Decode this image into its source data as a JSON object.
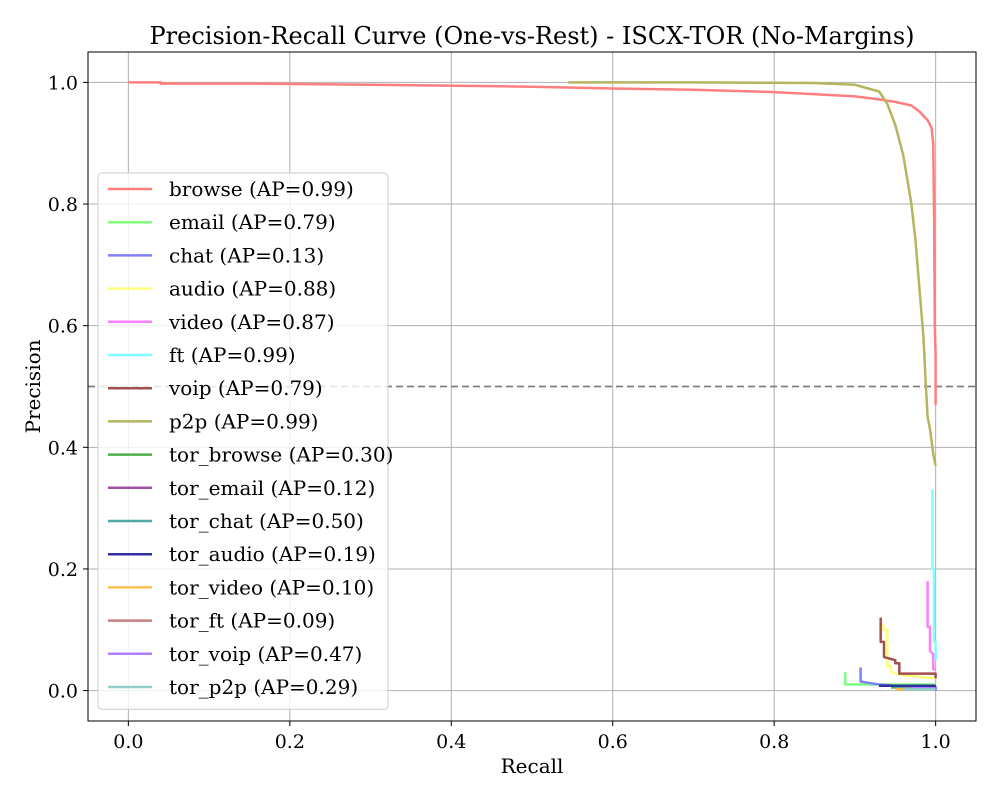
{
  "chart_data": {
    "type": "line",
    "title": "Precision-Recall Curve (One-vs-Rest) - ISCX-TOR (No-Margins)",
    "xlabel": "Recall",
    "ylabel": "Precision",
    "xlim": [
      -0.05,
      1.05
    ],
    "ylim": [
      -0.05,
      1.05
    ],
    "xticks": [
      0.0,
      0.2,
      0.4,
      0.6,
      0.8,
      1.0
    ],
    "xtick_labels": [
      "0.0",
      "0.2",
      "0.4",
      "0.6",
      "0.8",
      "1.0"
    ],
    "yticks": [
      0.0,
      0.2,
      0.4,
      0.6,
      0.8,
      1.0
    ],
    "ytick_labels": [
      "0.0",
      "0.2",
      "0.4",
      "0.6",
      "0.8",
      "1.0"
    ],
    "grid": true,
    "legend_placement": "center-left",
    "reference_line": {
      "y": 0.5,
      "style": "dashed",
      "color": "#808080"
    },
    "series": [
      {
        "name": "browse (AP=0.99)",
        "color": "#ff7f7f",
        "x": [
          0.0,
          0.04,
          0.04,
          0.15,
          0.3,
          0.5,
          0.6,
          0.7,
          0.8,
          0.86,
          0.9,
          0.93,
          0.95,
          0.97,
          0.98,
          0.99,
          0.995,
          0.997,
          0.998,
          0.999,
          1.0,
          1.0
        ],
        "y": [
          1.0,
          1.0,
          0.998,
          0.998,
          0.996,
          0.993,
          0.99,
          0.988,
          0.984,
          0.98,
          0.977,
          0.972,
          0.968,
          0.962,
          0.952,
          0.938,
          0.925,
          0.9,
          0.8,
          0.6,
          0.55,
          0.47
        ]
      },
      {
        "name": "email (AP=0.79)",
        "color": "#7fff7f",
        "x": [
          0.888,
          0.888,
          0.94,
          1.0
        ],
        "y": [
          0.03,
          0.01,
          0.01,
          0.01
        ]
      },
      {
        "name": "chat (AP=0.13)",
        "color": "#7f7fff",
        "x": [
          0.907,
          0.907,
          0.92,
          0.93,
          0.95,
          1.0,
          1.0
        ],
        "y": [
          0.038,
          0.015,
          0.012,
          0.01,
          0.008,
          0.006,
          0.0
        ]
      },
      {
        "name": "audio (AP=0.88)",
        "color": "#ffff7f",
        "x": [
          0.935,
          0.935,
          0.94,
          0.94,
          0.945,
          0.945,
          0.96,
          1.0
        ],
        "y": [
          0.11,
          0.1,
          0.1,
          0.04,
          0.04,
          0.03,
          0.025,
          0.02
        ]
      },
      {
        "name": "video (AP=0.87)",
        "color": "#ff7fff",
        "x": [
          0.99,
          0.99,
          0.993,
          0.993,
          0.997,
          0.997,
          1.0
        ],
        "y": [
          0.18,
          0.105,
          0.105,
          0.065,
          0.06,
          0.035,
          0.035
        ]
      },
      {
        "name": "ft (AP=0.99)",
        "color": "#7fffff",
        "x": [
          0.996,
          0.996,
          0.998,
          0.998,
          1.0,
          1.0
        ],
        "y": [
          0.33,
          0.2,
          0.2,
          0.08,
          0.08,
          0.05
        ]
      },
      {
        "name": "voip (AP=0.79)",
        "color": "#a05050",
        "x": [
          0.932,
          0.932,
          0.936,
          0.936,
          0.95,
          0.95,
          0.955,
          0.955,
          1.0,
          1.0
        ],
        "y": [
          0.12,
          0.08,
          0.08,
          0.055,
          0.05,
          0.045,
          0.045,
          0.028,
          0.028,
          0.02
        ]
      },
      {
        "name": "p2p (AP=0.99)",
        "color": "#b5b560",
        "x": [
          0.545,
          0.7,
          0.85,
          0.9,
          0.93,
          0.94,
          0.95,
          0.96,
          0.97,
          0.975,
          0.98,
          0.985,
          0.988,
          0.99,
          0.993,
          0.995,
          0.997,
          1.0
        ],
        "y": [
          1.0,
          1.0,
          0.999,
          0.996,
          0.985,
          0.965,
          0.93,
          0.88,
          0.8,
          0.74,
          0.66,
          0.58,
          0.5,
          0.45,
          0.43,
          0.41,
          0.39,
          0.37
        ]
      },
      {
        "name": "tor_browse (AP=0.30)",
        "color": "#4caf4c",
        "x": [
          0.945,
          1.0
        ],
        "y": [
          0.005,
          0.005
        ]
      },
      {
        "name": "tor_email (AP=0.12)",
        "color": "#a050a0",
        "x": [
          0.96,
          1.0
        ],
        "y": [
          0.004,
          0.004
        ]
      },
      {
        "name": "tor_chat (AP=0.50)",
        "color": "#50a8a8",
        "x": [
          0.95,
          1.0
        ],
        "y": [
          0.006,
          0.006
        ]
      },
      {
        "name": "tor_audio (AP=0.19)",
        "color": "#3030a0",
        "x": [
          0.93,
          0.999,
          0.999
        ],
        "y": [
          0.008,
          0.008,
          0.0
        ]
      },
      {
        "name": "tor_video (AP=0.10)",
        "color": "#ffc050",
        "x": [
          0.95,
          1.0
        ],
        "y": [
          0.002,
          0.002
        ]
      },
      {
        "name": "tor_ft (AP=0.09)",
        "color": "#c88080",
        "x": [
          0.96,
          1.0
        ],
        "y": [
          0.003,
          0.003
        ]
      },
      {
        "name": "tor_voip (AP=0.47)",
        "color": "#b080ff",
        "x": [
          0.97,
          1.0
        ],
        "y": [
          0.004,
          0.004
        ]
      },
      {
        "name": "tor_p2p (AP=0.29)",
        "color": "#90d0c8",
        "x": [
          0.96,
          1.0
        ],
        "y": [
          0.002,
          0.002
        ]
      }
    ]
  }
}
